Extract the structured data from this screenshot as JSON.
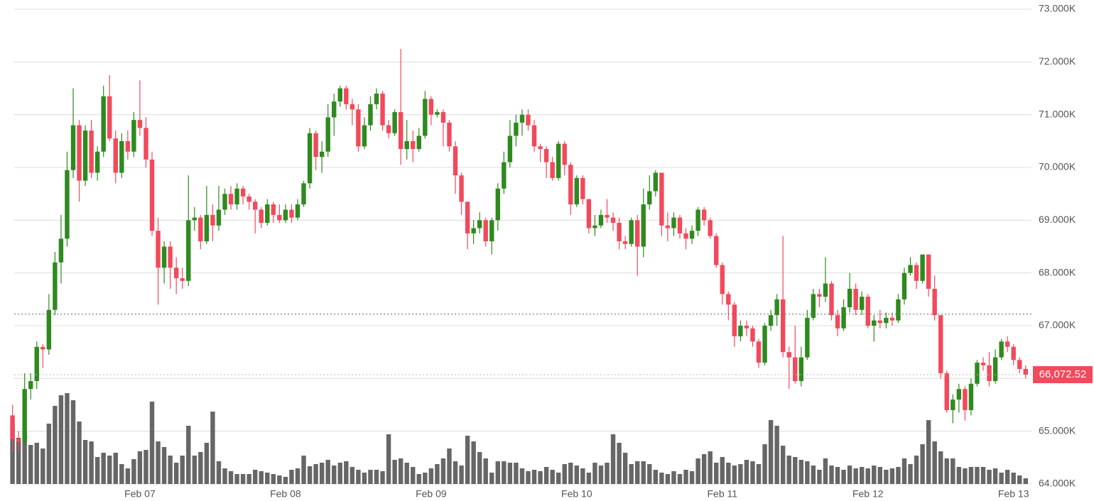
{
  "chart_data": {
    "type": "candlestick",
    "categories": [
      null,
      null,
      null,
      null,
      null,
      null,
      null,
      null,
      null,
      null,
      null,
      null,
      null,
      null,
      null,
      null,
      null,
      null,
      null,
      null,
      null,
      "Feb 07",
      null,
      null,
      null,
      null,
      null,
      null,
      null,
      null,
      null,
      null,
      null,
      null,
      null,
      null,
      null,
      null,
      null,
      null,
      null,
      null,
      null,
      null,
      null,
      "Feb 08",
      null,
      null,
      null,
      null,
      null,
      null,
      null,
      null,
      null,
      null,
      null,
      null,
      null,
      null,
      null,
      null,
      null,
      null,
      null,
      null,
      null,
      null,
      null,
      "Feb 09",
      null,
      null,
      null,
      null,
      null,
      null,
      null,
      null,
      null,
      null,
      null,
      null,
      null,
      null,
      null,
      null,
      null,
      null,
      null,
      null,
      null,
      null,
      null,
      "Feb 10",
      null,
      null,
      null,
      null,
      null,
      null,
      null,
      null,
      null,
      null,
      null,
      null,
      null,
      null,
      null,
      null,
      null,
      null,
      null,
      null,
      null,
      null,
      null,
      "Feb 11",
      null,
      null,
      null,
      null,
      null,
      null,
      null,
      null,
      null,
      null,
      null,
      null,
      null,
      null,
      null,
      null,
      null,
      null,
      null,
      null,
      null,
      null,
      null,
      "Feb 12",
      null,
      null,
      null,
      null,
      null,
      null,
      null,
      null,
      null,
      null,
      null,
      null,
      null,
      null,
      null,
      null,
      null,
      null,
      null,
      null,
      null,
      null,
      null,
      "Feb 13",
      null,
      null
    ],
    "open": [
      65300,
      64850,
      64800,
      65800,
      65950,
      66600,
      66550,
      67300,
      68200,
      68650,
      69950,
      70800,
      69750,
      70700,
      69900,
      70300,
      71350,
      70550,
      69900,
      70500,
      70300,
      70900,
      70750,
      70150,
      68800,
      68100,
      68500,
      68100,
      67900,
      67850,
      69000,
      69050,
      68600,
      69100,
      68900,
      69200,
      69500,
      69300,
      69600,
      69450,
      69350,
      69200,
      68950,
      69300,
      69100,
      69000,
      69200,
      69050,
      69300,
      69700,
      70650,
      70200,
      70300,
      70950,
      71250,
      71500,
      71200,
      71100,
      70400,
      70800,
      71200,
      71400,
      70800,
      70650,
      71050,
      70350,
      70500,
      70350,
      70600,
      71300,
      71000,
      71050,
      70850,
      70400,
      69850,
      69350,
      68750,
      68850,
      69000,
      68600,
      69000,
      69600,
      70100,
      70600,
      70850,
      71000,
      70800,
      70400,
      70350,
      70100,
      69800,
      70450,
      70050,
      69300,
      69800,
      69400,
      68850,
      68900,
      69100,
      69050,
      68950,
      68600,
      68550,
      69000,
      68500,
      69300,
      69550,
      69900,
      68900,
      68850,
      69050,
      68750,
      68650,
      68800,
      69200,
      69000,
      68700,
      68150,
      67600,
      67400,
      66800,
      67000,
      66950,
      66700,
      66300,
      67000,
      67200,
      67500,
      66500,
      66400,
      65950,
      66400,
      67150,
      67600,
      67550,
      67800,
      67200,
      66950,
      67350,
      67700,
      67300,
      67550,
      67000,
      67100,
      67050,
      67150,
      67100,
      67500,
      68000,
      68150,
      67850,
      68350,
      67700,
      67200,
      66100,
      65400,
      65600,
      65800,
      65400,
      65900,
      66300,
      66250,
      65950,
      66400,
      66700,
      66600,
      66350,
      66180
    ],
    "high": [
      65500,
      65000,
      66100,
      66100,
      66700,
      66650,
      67600,
      68400,
      69100,
      70300,
      71500,
      70900,
      70800,
      70900,
      70400,
      71550,
      71750,
      70700,
      70650,
      70700,
      71050,
      71650,
      70950,
      70300,
      69050,
      68600,
      68600,
      68300,
      68100,
      69850,
      69250,
      69100,
      69650,
      69300,
      69650,
      69600,
      69650,
      69700,
      69650,
      69500,
      69400,
      69250,
      69400,
      69350,
      69300,
      69300,
      69300,
      69400,
      69750,
      70750,
      70700,
      70500,
      71200,
      71400,
      71550,
      71550,
      71300,
      71200,
      70950,
      71350,
      71500,
      71450,
      70900,
      71100,
      72250,
      70900,
      70700,
      70750,
      71450,
      71350,
      71100,
      71100,
      70900,
      70500,
      69900,
      69350,
      69000,
      69150,
      69050,
      69050,
      69700,
      70300,
      70900,
      71000,
      71100,
      71100,
      70900,
      70450,
      70400,
      70200,
      70500,
      70500,
      70100,
      69850,
      69850,
      69400,
      69100,
      69200,
      69400,
      69150,
      69050,
      68700,
      69050,
      69100,
      69600,
      69850,
      69950,
      69900,
      69150,
      69150,
      69100,
      68850,
      68900,
      69250,
      69250,
      69050,
      68750,
      68200,
      67650,
      67450,
      67100,
      67100,
      67000,
      66750,
      67050,
      67300,
      67600,
      68700,
      66600,
      67000,
      66600,
      67300,
      67700,
      67700,
      68300,
      67850,
      67300,
      67500,
      68000,
      67800,
      67650,
      67600,
      67200,
      67300,
      67250,
      67250,
      67600,
      68100,
      68300,
      68200,
      68350,
      68350,
      67950,
      67200,
      66150,
      65700,
      65900,
      65850,
      66000,
      66350,
      66400,
      66500,
      66550,
      66750,
      66800,
      66650,
      66400,
      66250
    ],
    "low": [
      64600,
      64600,
      64700,
      65600,
      65800,
      66200,
      66450,
      67200,
      67800,
      68500,
      69800,
      69350,
      69650,
      69800,
      69750,
      70200,
      70500,
      69700,
      69800,
      70150,
      70200,
      70600,
      70000,
      68700,
      67400,
      67800,
      67700,
      67600,
      67700,
      67750,
      68800,
      68450,
      68550,
      68600,
      68800,
      69100,
      69200,
      69200,
      69300,
      69200,
      68750,
      68850,
      68900,
      68950,
      68950,
      68950,
      68950,
      69000,
      69250,
      69600,
      69950,
      69900,
      70200,
      70600,
      71150,
      71100,
      70800,
      70300,
      70350,
      70700,
      71100,
      70700,
      70550,
      70600,
      70050,
      70150,
      70100,
      70300,
      70550,
      70800,
      70950,
      70400,
      70300,
      69500,
      69100,
      68450,
      68550,
      68750,
      68500,
      68350,
      68800,
      69500,
      70000,
      70400,
      70600,
      70700,
      70300,
      70100,
      69800,
      69750,
      69750,
      69850,
      69100,
      69250,
      69300,
      68750,
      68700,
      68850,
      68950,
      68800,
      68450,
      68450,
      68500,
      67950,
      68300,
      69200,
      69450,
      68700,
      68600,
      68700,
      68650,
      68450,
      68550,
      68700,
      68900,
      68650,
      68100,
      67400,
      67100,
      66600,
      66700,
      66800,
      66600,
      66200,
      66250,
      66900,
      67000,
      66400,
      65800,
      65900,
      65850,
      66350,
      67100,
      67350,
      67450,
      67100,
      66800,
      66900,
      67250,
      67200,
      67200,
      66950,
      66700,
      66950,
      66950,
      67000,
      67050,
      67400,
      67950,
      67700,
      67800,
      67550,
      67100,
      66000,
      65350,
      65150,
      65350,
      65200,
      65300,
      65850,
      66150,
      65850,
      65900,
      66350,
      66500,
      66250,
      66100,
      66000
    ],
    "close": [
      64850,
      64800,
      65800,
      65950,
      66600,
      66550,
      67300,
      68200,
      68650,
      69950,
      70800,
      69750,
      70700,
      69900,
      70300,
      71350,
      70550,
      69900,
      70500,
      70300,
      70900,
      70750,
      70150,
      68800,
      68100,
      68500,
      68100,
      67900,
      67850,
      69000,
      69050,
      68600,
      69100,
      68900,
      69200,
      69500,
      69300,
      69600,
      69450,
      69350,
      69200,
      68950,
      69300,
      69100,
      69000,
      69200,
      69050,
      69300,
      69700,
      70650,
      70200,
      70300,
      70950,
      71250,
      71500,
      71200,
      71100,
      70400,
      70800,
      71200,
      71400,
      70800,
      70650,
      71050,
      70350,
      70500,
      70350,
      70600,
      71300,
      71000,
      71050,
      70850,
      70400,
      69850,
      69350,
      68750,
      68850,
      69000,
      68600,
      69000,
      69600,
      70100,
      70600,
      70850,
      71000,
      70800,
      70400,
      70350,
      70100,
      69800,
      70450,
      70050,
      69300,
      69800,
      69400,
      68850,
      68900,
      69100,
      69050,
      68950,
      68600,
      68550,
      69000,
      68500,
      69300,
      69550,
      69900,
      68900,
      68850,
      69050,
      68750,
      68650,
      68800,
      69200,
      69000,
      68700,
      68150,
      67600,
      67400,
      66800,
      67000,
      66950,
      66700,
      66300,
      67000,
      67200,
      67500,
      66500,
      66400,
      65950,
      66400,
      67150,
      67600,
      67550,
      67800,
      67200,
      66950,
      67350,
      67700,
      67300,
      67550,
      67000,
      67100,
      67050,
      67150,
      67100,
      67500,
      68000,
      68150,
      67850,
      68350,
      67700,
      67200,
      66100,
      65400,
      65600,
      65800,
      65400,
      65900,
      66300,
      66250,
      65950,
      66400,
      66700,
      66600,
      66350,
      66180,
      66072.52
    ],
    "volume": [
      85,
      65,
      75,
      55,
      58,
      50,
      85,
      110,
      125,
      128,
      118,
      88,
      62,
      60,
      38,
      44,
      40,
      44,
      28,
      22,
      35,
      46,
      48,
      116,
      60,
      52,
      40,
      30,
      40,
      82,
      40,
      45,
      58,
      102,
      32,
      22,
      18,
      14,
      14,
      14,
      20,
      18,
      16,
      14,
      12,
      10,
      20,
      22,
      40,
      25,
      28,
      30,
      34,
      26,
      30,
      32,
      24,
      20,
      16,
      20,
      20,
      18,
      70,
      34,
      36,
      30,
      24,
      14,
      16,
      22,
      28,
      36,
      50,
      32,
      26,
      68,
      60,
      45,
      36,
      16,
      32,
      32,
      30,
      30,
      22,
      18,
      20,
      18,
      24,
      20,
      16,
      28,
      30,
      26,
      22,
      16,
      30,
      26,
      30,
      70,
      58,
      44,
      28,
      32,
      32,
      28,
      20,
      16,
      14,
      18,
      14,
      20,
      18,
      36,
      42,
      46,
      30,
      38,
      30,
      26,
      28,
      34,
      32,
      28,
      56,
      90,
      82,
      54,
      40,
      38,
      34,
      32,
      26,
      20,
      36,
      26,
      24,
      20,
      26,
      22,
      24,
      22,
      26,
      24,
      20,
      22,
      24,
      36,
      28,
      40,
      56,
      90,
      60,
      46,
      36,
      36,
      24,
      22,
      24,
      24,
      24,
      20,
      22,
      16,
      20,
      16,
      12,
      8
    ],
    "volume_lim": [
      0,
      669
    ],
    "ylim": [
      64000,
      73000
    ],
    "yticks": [
      {
        "value": 64000,
        "label": "64.000K"
      },
      {
        "value": 65000,
        "label": "65.000K"
      },
      {
        "value": 66000,
        "label": "66.000K"
      },
      {
        "value": 67000,
        "label": "67.000K"
      },
      {
        "value": 68000,
        "label": "68.000K"
      },
      {
        "value": 69000,
        "label": "69.000K"
      },
      {
        "value": 70000,
        "label": "70.000K"
      },
      {
        "value": 71000,
        "label": "71.000K"
      },
      {
        "value": 72000,
        "label": "72.000K"
      },
      {
        "value": 73000,
        "label": "73.000K"
      }
    ],
    "last_price": {
      "value": 66072.52,
      "label": "66,072.52"
    },
    "reference_line": 67220,
    "grid": true,
    "up_color": "#2e8a1e",
    "down_color": "#f2495c",
    "volume_color": "#666666"
  }
}
